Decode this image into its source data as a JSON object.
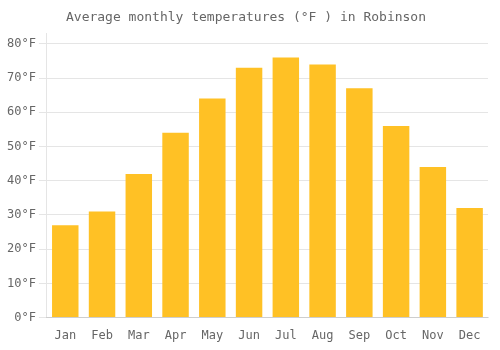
{
  "chart_data": {
    "type": "bar",
    "title": "Average monthly temperatures (°F ) in Robinson",
    "categories": [
      "Jan",
      "Feb",
      "Mar",
      "Apr",
      "May",
      "Jun",
      "Jul",
      "Aug",
      "Sep",
      "Oct",
      "Nov",
      "Dec"
    ],
    "values": [
      27,
      31,
      42,
      54,
      64,
      73,
      76,
      74,
      67,
      56,
      44,
      32
    ],
    "color": "#FFC125",
    "ylim": [
      0,
      83
    ],
    "yticks": [
      {
        "value": 0,
        "label": "0°F"
      },
      {
        "value": 10,
        "label": "10°F"
      },
      {
        "value": 20,
        "label": "20°F"
      },
      {
        "value": 30,
        "label": "30°F"
      },
      {
        "value": 40,
        "label": "40°F"
      },
      {
        "value": 50,
        "label": "50°F"
      },
      {
        "value": 60,
        "label": "60°F"
      },
      {
        "value": 70,
        "label": "70°F"
      },
      {
        "value": 80,
        "label": "80°F"
      }
    ],
    "grid": true
  }
}
